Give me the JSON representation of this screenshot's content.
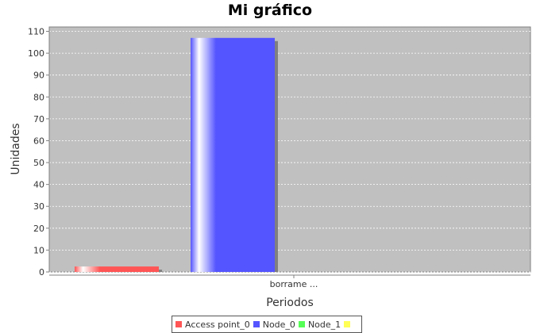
{
  "chart_data": {
    "type": "bar",
    "title": "Mi gráfico",
    "xlabel": "Periodos",
    "ylabel": "Unidades",
    "categories": [
      "borrame ..."
    ],
    "ylim": [
      0,
      112
    ],
    "yticks": [
      0,
      10,
      20,
      30,
      40,
      50,
      60,
      70,
      80,
      90,
      100,
      110
    ],
    "grid": true,
    "legend_position": "bottom",
    "background": "#c0c0c0",
    "series": [
      {
        "name": "Access point_0",
        "values": [
          2.5
        ],
        "color": "#ff5555"
      },
      {
        "name": "Node_0",
        "values": [
          107
        ],
        "color": "#5555ff"
      },
      {
        "name": "Node_1",
        "values": [
          0
        ],
        "color": "#55ff55"
      },
      {
        "name": "",
        "values": [
          0
        ],
        "color": "#ffff55"
      }
    ]
  }
}
